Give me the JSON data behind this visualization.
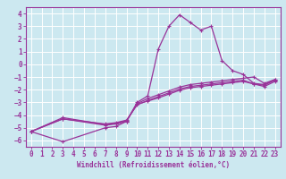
{
  "xlabel": "Windchill (Refroidissement éolien,°C)",
  "background_color": "#cce8f0",
  "grid_color": "#ffffff",
  "line_color": "#993399",
  "xlim": [
    -0.5,
    23.5
  ],
  "ylim": [
    -6.5,
    4.5
  ],
  "yticks": [
    -6,
    -5,
    -4,
    -3,
    -2,
    -1,
    0,
    1,
    2,
    3,
    4
  ],
  "xticks": [
    0,
    1,
    2,
    3,
    4,
    5,
    6,
    7,
    8,
    9,
    10,
    11,
    12,
    13,
    14,
    15,
    16,
    17,
    18,
    19,
    20,
    21,
    22,
    23
  ],
  "line1_x": [
    0,
    3,
    7,
    8,
    9,
    10,
    11,
    12,
    13,
    14,
    15,
    16,
    17,
    18,
    19,
    20,
    21,
    22,
    23
  ],
  "line1_y": [
    -5.3,
    -6.1,
    -5.0,
    -4.9,
    -4.5,
    -3.0,
    -2.5,
    1.2,
    3.0,
    3.9,
    3.3,
    2.7,
    3.0,
    0.3,
    -0.5,
    -0.8,
    -1.5,
    -1.6,
    -1.2
  ],
  "line2_x": [
    0,
    3,
    7,
    8,
    9,
    10,
    11,
    12,
    13,
    14,
    15,
    16,
    17,
    18,
    19,
    20,
    21,
    22,
    23
  ],
  "line2_y": [
    -5.3,
    -4.3,
    -4.8,
    -4.7,
    -4.5,
    -3.1,
    -2.7,
    -2.4,
    -2.1,
    -1.8,
    -1.6,
    -1.5,
    -1.4,
    -1.3,
    -1.2,
    -1.1,
    -1.0,
    -1.5,
    -1.2
  ],
  "line3_x": [
    0,
    3,
    7,
    8,
    9,
    10,
    11,
    12,
    13,
    14,
    15,
    16,
    17,
    18,
    19,
    20,
    21,
    22,
    23
  ],
  "line3_y": [
    -5.3,
    -4.3,
    -4.7,
    -4.6,
    -4.4,
    -3.2,
    -2.85,
    -2.55,
    -2.25,
    -1.95,
    -1.75,
    -1.65,
    -1.55,
    -1.45,
    -1.35,
    -1.25,
    -1.55,
    -1.65,
    -1.25
  ],
  "line4_x": [
    0,
    3,
    7,
    8,
    9,
    10,
    11,
    12,
    13,
    14,
    15,
    16,
    17,
    18,
    19,
    20,
    21,
    22,
    23
  ],
  "line4_y": [
    -5.3,
    -4.2,
    -4.75,
    -4.65,
    -4.45,
    -3.15,
    -2.9,
    -2.65,
    -2.35,
    -2.05,
    -1.85,
    -1.75,
    -1.65,
    -1.55,
    -1.45,
    -1.35,
    -1.55,
    -1.75,
    -1.35
  ],
  "tick_fontsize": 5.5,
  "xlabel_fontsize": 5.5
}
